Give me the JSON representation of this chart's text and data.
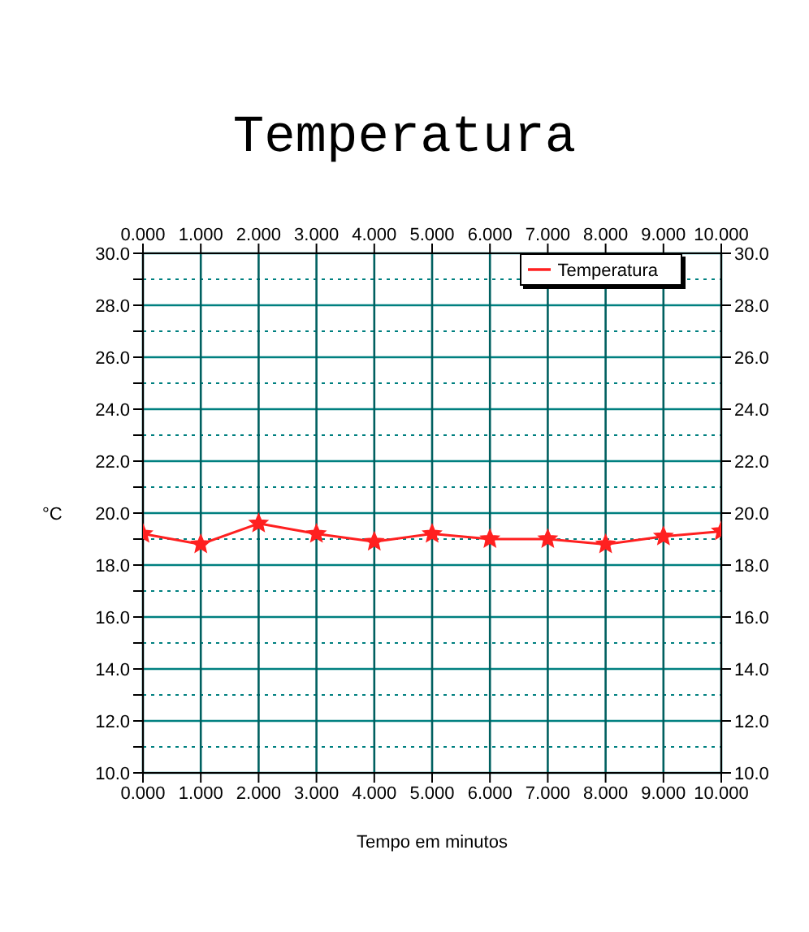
{
  "chart_data": {
    "type": "line",
    "title": "Temperatura",
    "xlabel": "Tempo em minutos",
    "ylabel": "°C",
    "x": [
      0,
      1,
      2,
      3,
      4,
      5,
      6,
      7,
      8,
      9,
      10
    ],
    "series": [
      {
        "name": "Temperatura",
        "color": "#ff2020",
        "values": [
          19.2,
          18.8,
          19.6,
          19.2,
          18.9,
          19.2,
          19.0,
          19.0,
          18.8,
          19.1,
          19.3
        ]
      }
    ],
    "xlim": [
      0,
      10
    ],
    "xticks": [
      {
        "value": 0,
        "label": "0.000"
      },
      {
        "value": 1,
        "label": "1.000"
      },
      {
        "value": 2,
        "label": "2.000"
      },
      {
        "value": 3,
        "label": "3.000"
      },
      {
        "value": 4,
        "label": "4.000"
      },
      {
        "value": 5,
        "label": "5.000"
      },
      {
        "value": 6,
        "label": "6.000"
      },
      {
        "value": 7,
        "label": "7.000"
      },
      {
        "value": 8,
        "label": "8.000"
      },
      {
        "value": 9,
        "label": "9.000"
      },
      {
        "value": 10,
        "label": "10.000"
      }
    ],
    "x2lim": [
      0,
      10
    ],
    "x2ticks": [
      {
        "value": 0,
        "label": "0.000"
      },
      {
        "value": 1,
        "label": "1.000"
      },
      {
        "value": 2,
        "label": "2.000"
      },
      {
        "value": 3,
        "label": "3.000"
      },
      {
        "value": 4,
        "label": "4.000"
      },
      {
        "value": 5,
        "label": "5.000"
      },
      {
        "value": 6,
        "label": "6.000"
      },
      {
        "value": 7,
        "label": "7.000"
      },
      {
        "value": 8,
        "label": "8.000"
      },
      {
        "value": 9,
        "label": "9.000"
      },
      {
        "value": 10,
        "label": "10.000"
      }
    ],
    "ylim": [
      10,
      30
    ],
    "yticks": [
      {
        "value": 10,
        "label": "10.0"
      },
      {
        "value": 11,
        "label": null
      },
      {
        "value": 12,
        "label": "12.0"
      },
      {
        "value": 13,
        "label": null
      },
      {
        "value": 14,
        "label": "14.0"
      },
      {
        "value": 15,
        "label": null
      },
      {
        "value": 16,
        "label": "16.0"
      },
      {
        "value": 17,
        "label": null
      },
      {
        "value": 18,
        "label": "18.0"
      },
      {
        "value": 19,
        "label": null
      },
      {
        "value": 20,
        "label": "20.0"
      },
      {
        "value": 21,
        "label": null
      },
      {
        "value": 22,
        "label": "22.0"
      },
      {
        "value": 23,
        "label": null
      },
      {
        "value": 24,
        "label": "24.0"
      },
      {
        "value": 25,
        "label": null
      },
      {
        "value": 26,
        "label": "26.0"
      },
      {
        "value": 27,
        "label": null
      },
      {
        "value": 28,
        "label": "28.0"
      },
      {
        "value": 29,
        "label": null
      },
      {
        "value": 30,
        "label": "30.0"
      }
    ],
    "y2lim": [
      10,
      30
    ],
    "y2ticks": [
      {
        "value": 10,
        "label": "10.0"
      },
      {
        "value": 12,
        "label": "12.0"
      },
      {
        "value": 14,
        "label": "14.0"
      },
      {
        "value": 16,
        "label": "16.0"
      },
      {
        "value": 18,
        "label": "18.0"
      },
      {
        "value": 20,
        "label": "20.0"
      },
      {
        "value": 22,
        "label": "22.0"
      },
      {
        "value": 24,
        "label": "24.0"
      },
      {
        "value": 26,
        "label": "26.0"
      },
      {
        "value": 28,
        "label": "28.0"
      },
      {
        "value": 30,
        "label": "30.0"
      }
    ],
    "grid": true,
    "legend": "top right",
    "marker": "star",
    "line_style": "solid"
  }
}
